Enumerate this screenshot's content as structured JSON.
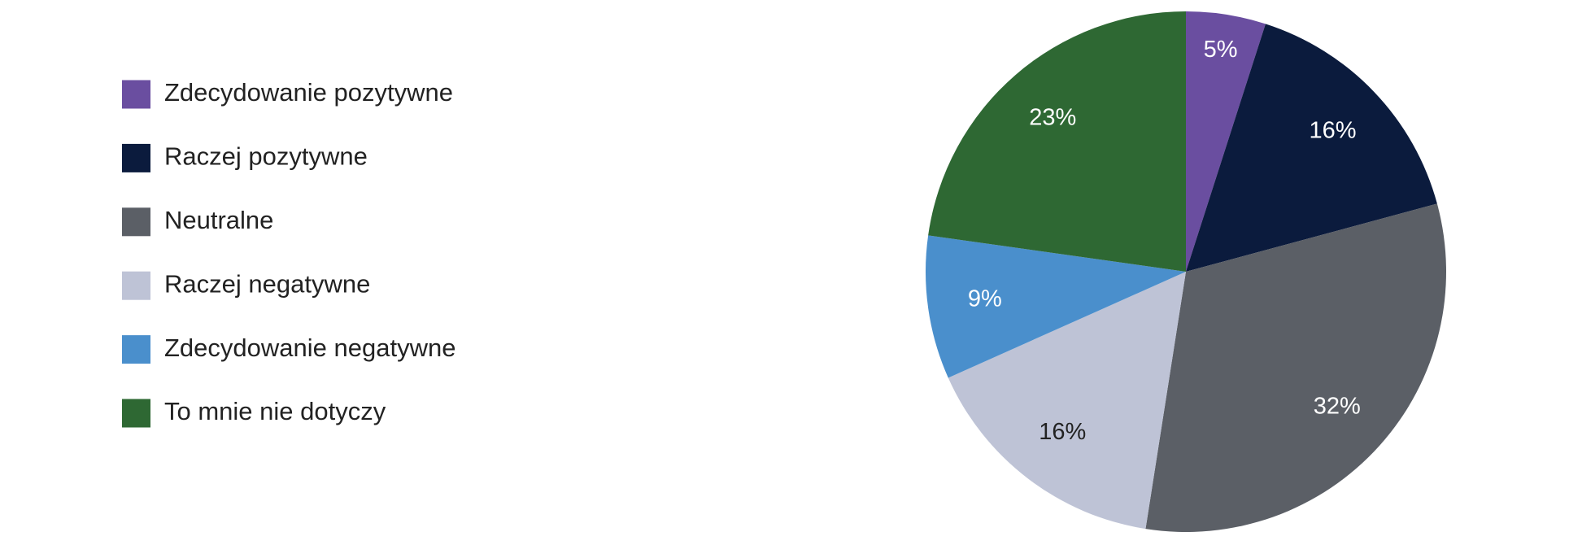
{
  "chart_data": {
    "type": "pie",
    "categories": [
      "Zdecydowanie pozytywne",
      "Raczej pozytywne",
      "Neutralne",
      "Raczej negatywne",
      "Zdecydowanie negatywne",
      "To mnie nie dotyczy"
    ],
    "values": [
      5,
      16,
      32,
      16,
      9,
      23
    ],
    "value_labels": [
      "5%",
      "16%",
      "32%",
      "16%",
      "9%",
      "23%"
    ],
    "colors": [
      "#6a4ea0",
      "#0b1b3d",
      "#5b5f66",
      "#bec3d6",
      "#4a8fcc",
      "#2e6833"
    ],
    "legend": "left"
  }
}
